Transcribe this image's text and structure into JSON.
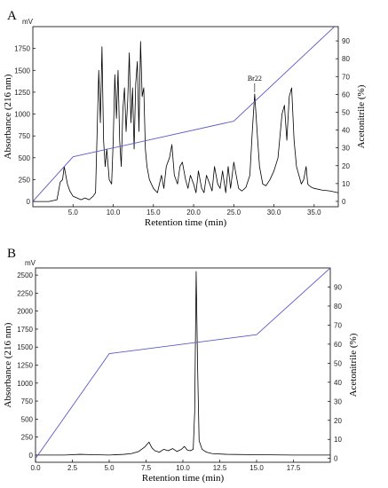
{
  "chart_data": [
    {
      "panel": "A",
      "type": "line",
      "unit_label": "mV",
      "xlabel": "Retention time (min)",
      "ylabel": "Absorbance (216 nm)",
      "y2label": "Acetonitrile (%)",
      "xlim": [
        0,
        38
      ],
      "ylim": [
        -60,
        2000
      ],
      "y2lim": [
        -3,
        98
      ],
      "xticks": [
        5,
        10,
        15,
        20,
        25,
        30,
        35
      ],
      "xtick_labels": [
        "5.0",
        "10.0",
        "15.0",
        "20.0",
        "25.0",
        "30.0",
        "35.0"
      ],
      "yticks": [
        0,
        250,
        500,
        750,
        1000,
        1250,
        1500,
        1750
      ],
      "ytick_labels": [
        "0",
        "250",
        "500",
        "750",
        "1000",
        "1250",
        "1500",
        "1750"
      ],
      "y2ticks": [
        0,
        10,
        20,
        30,
        40,
        50,
        60,
        70,
        80,
        90
      ],
      "y2tick_labels": [
        "0",
        "10",
        "20",
        "30",
        "40",
        "50",
        "60",
        "70",
        "80",
        "90"
      ],
      "annotation": {
        "text": "Br22",
        "x": 27.6,
        "y": 1230
      },
      "series": [
        {
          "role": "absorbance",
          "color": "#000000",
          "x": [
            0,
            1,
            2,
            3,
            3.4,
            3.7,
            3.9,
            4.1,
            4.3,
            4.6,
            5,
            5.5,
            6,
            6.5,
            7,
            7.5,
            7.8,
            8.0,
            8.2,
            8.4,
            8.6,
            8.8,
            9.0,
            9.2,
            9.5,
            9.8,
            10.0,
            10.2,
            10.4,
            10.6,
            10.8,
            11.0,
            11.2,
            11.4,
            11.6,
            11.8,
            12.0,
            12.2,
            12.4,
            12.6,
            12.8,
            13.0,
            13.2,
            13.4,
            13.6,
            13.8,
            14.0,
            14.2,
            14.5,
            15.0,
            15.5,
            16.0,
            16.3,
            16.6,
            17.0,
            17.3,
            17.6,
            18.0,
            18.3,
            18.6,
            19.0,
            19.3,
            19.6,
            20.0,
            20.3,
            20.6,
            21.0,
            21.3,
            21.6,
            22.0,
            22.3,
            22.6,
            23.0,
            23.3,
            23.6,
            24.0,
            24.3,
            24.6,
            25.0,
            25.3,
            25.6,
            26.0,
            26.5,
            27.0,
            27.3,
            27.6,
            27.9,
            28.2,
            28.6,
            29.0,
            29.5,
            30.0,
            30.5,
            31.0,
            31.3,
            31.6,
            31.9,
            32.2,
            32.5,
            32.8,
            33.1,
            33.4,
            33.7,
            34.0,
            34.2,
            34.4,
            34.7,
            35.0,
            36.0,
            37.0,
            38.0
          ],
          "y": [
            0,
            0,
            0,
            20,
            220,
            250,
            400,
            300,
            200,
            120,
            60,
            40,
            20,
            40,
            20,
            60,
            100,
            800,
            1500,
            900,
            1770,
            700,
            400,
            600,
            250,
            200,
            700,
            1450,
            950,
            1500,
            700,
            400,
            1050,
            1300,
            800,
            1150,
            1700,
            900,
            1300,
            600,
            1350,
            1600,
            800,
            1830,
            1200,
            1300,
            600,
            400,
            250,
            150,
            100,
            300,
            150,
            400,
            500,
            650,
            300,
            200,
            400,
            450,
            250,
            150,
            300,
            200,
            100,
            350,
            150,
            100,
            300,
            200,
            120,
            400,
            200,
            150,
            350,
            100,
            400,
            150,
            450,
            300,
            150,
            120,
            160,
            300,
            800,
            1230,
            800,
            400,
            200,
            180,
            250,
            350,
            500,
            1000,
            1100,
            700,
            1200,
            1300,
            700,
            400,
            300,
            200,
            250,
            400,
            200,
            180,
            160,
            150,
            130,
            120,
            100
          ]
        },
        {
          "role": "acetonitrile",
          "color": "#5a5ac8",
          "axis": "right",
          "x": [
            0,
            5,
            25,
            38
          ],
          "y": [
            0,
            25,
            45,
            100
          ]
        }
      ]
    },
    {
      "panel": "B",
      "type": "line",
      "unit_label": "mV",
      "xlabel": "Retention time (min)",
      "ylabel": "Absorbance (216 nm)",
      "y2label": "Acetonitrile (%)",
      "xlim": [
        0,
        20
      ],
      "ylim": [
        -100,
        2600
      ],
      "y2lim": [
        -2,
        100
      ],
      "xticks": [
        0,
        2.5,
        5,
        7.5,
        10,
        12.5,
        15,
        17.5
      ],
      "xtick_labels": [
        "0.0",
        "2.5",
        "5.0",
        "7.5",
        "10.0",
        "12.5",
        "15.0",
        "17.5"
      ],
      "yticks": [
        0,
        250,
        500,
        750,
        1000,
        1250,
        1500,
        1750,
        2000,
        2250,
        2500
      ],
      "ytick_labels": [
        "0",
        "250",
        "500",
        "750",
        "1000",
        "1250",
        "1500",
        "1750",
        "2000",
        "2250",
        "2500"
      ],
      "y2ticks": [
        0,
        10,
        20,
        30,
        40,
        50,
        60,
        70,
        80,
        90
      ],
      "y2tick_labels": [
        "0",
        "10",
        "20",
        "30",
        "40",
        "50",
        "60",
        "70",
        "80",
        "90"
      ],
      "series": [
        {
          "role": "absorbance",
          "color": "#000000",
          "x": [
            0,
            2,
            3,
            4,
            5,
            6,
            6.5,
            7,
            7.4,
            7.7,
            7.9,
            8.1,
            8.4,
            8.7,
            9.0,
            9.3,
            9.6,
            9.9,
            10.1,
            10.3,
            10.5,
            10.7,
            10.8,
            10.9,
            11.0,
            11.1,
            11.3,
            11.6,
            12,
            13,
            15,
            17.5,
            20
          ],
          "y": [
            0,
            0,
            10,
            5,
            0,
            10,
            20,
            50,
            110,
            180,
            100,
            60,
            40,
            80,
            60,
            90,
            50,
            80,
            120,
            70,
            60,
            80,
            600,
            2550,
            1200,
            200,
            80,
            40,
            20,
            10,
            5,
            0,
            0
          ]
        },
        {
          "role": "acetonitrile",
          "color": "#5a5ac8",
          "axis": "right",
          "x": [
            0,
            5,
            15,
            20
          ],
          "y": [
            0,
            55,
            65,
            100
          ]
        }
      ]
    }
  ]
}
